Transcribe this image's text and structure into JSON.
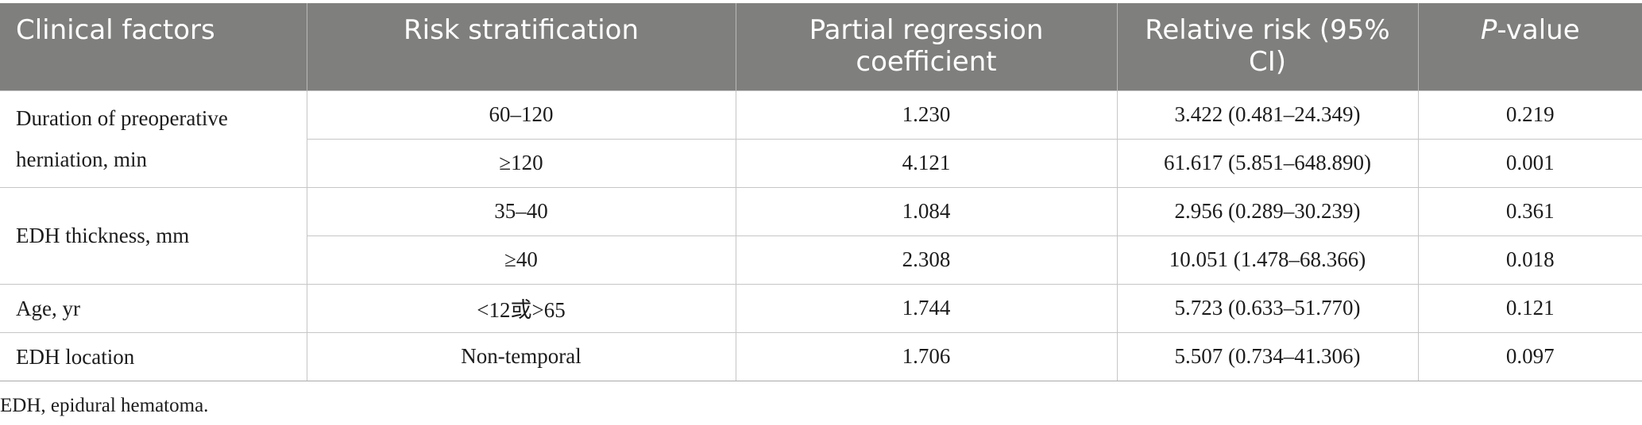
{
  "table": {
    "headers": {
      "col1": "Clinical factors",
      "col2": "Risk stratification",
      "col3": "Partial regression coefficient",
      "col4": "Relative risk (95% CI)",
      "col5_italic": "P",
      "col5_rest": "-value"
    },
    "groups": [
      {
        "factor_line1": "Duration of preoperative",
        "factor_line2": "herniation, min",
        "rows": [
          {
            "risk": "60–120",
            "coef": "1.230",
            "rr": "3.422 (0.481–24.349)",
            "p": "0.219"
          },
          {
            "risk": "≥120",
            "coef": "4.121",
            "rr": "61.617 (5.851–648.890)",
            "p": "0.001"
          }
        ]
      },
      {
        "factor_line1": "EDH thickness, mm",
        "rows": [
          {
            "risk": "35–40",
            "coef": "1.084",
            "rr": "2.956 (0.289–30.239)",
            "p": "0.361"
          },
          {
            "risk": "≥40",
            "coef": "2.308",
            "rr": "10.051 (1.478–68.366)",
            "p": "0.018"
          }
        ]
      },
      {
        "factor_line1": "Age, yr",
        "rows": [
          {
            "risk": "<12或>65",
            "coef": "1.744",
            "rr": "5.723 (0.633–51.770)",
            "p": "0.121"
          }
        ]
      },
      {
        "factor_line1": "EDH location",
        "rows": [
          {
            "risk": "Non-temporal",
            "coef": "1.706",
            "rr": "5.507 (0.734–41.306)",
            "p": "0.097"
          }
        ]
      }
    ]
  },
  "footnote": "EDH, epidural hematoma."
}
